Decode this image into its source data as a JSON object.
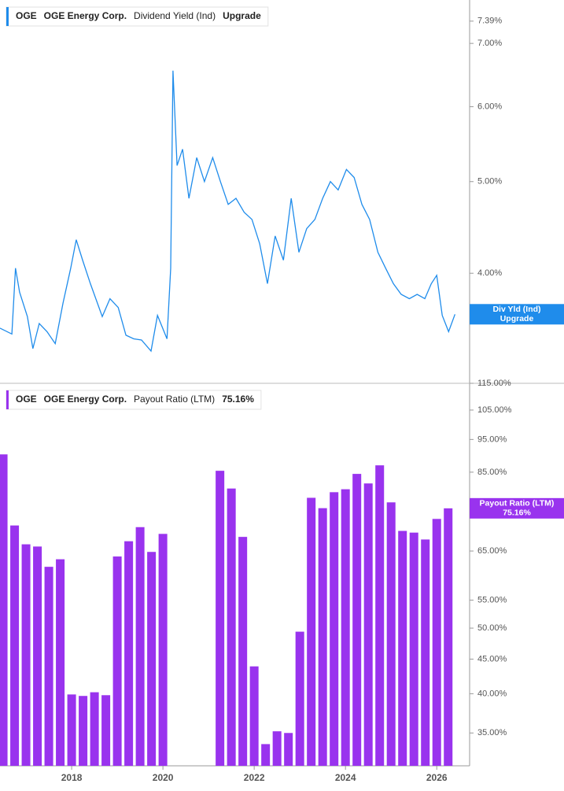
{
  "chart_data": [
    {
      "type": "line",
      "legend": {
        "ticker": "OGE",
        "company": "OGE Energy Corp.",
        "metric": "Dividend Yield (Ind)",
        "status": "Upgrade"
      },
      "badge_name": "Div Yld (Ind)",
      "x": [
        2016.43,
        2016.69,
        2016.77,
        2016.86,
        2017.03,
        2017.15,
        2017.29,
        2017.46,
        2017.64,
        2017.81,
        2017.98,
        2018.1,
        2018.24,
        2018.41,
        2018.67,
        2018.84,
        2019.02,
        2019.19,
        2019.36,
        2019.53,
        2019.74,
        2019.88,
        2020.09,
        2020.17,
        2020.22,
        2020.31,
        2020.43,
        2020.57,
        2020.74,
        2020.91,
        2021.09,
        2021.26,
        2021.43,
        2021.6,
        2021.78,
        2021.95,
        2022.12,
        2022.29,
        2022.46,
        2022.64,
        2022.81,
        2022.98,
        2023.15,
        2023.33,
        2023.5,
        2023.67,
        2023.84,
        2024.02,
        2024.19,
        2024.36,
        2024.53,
        2024.71,
        2024.88,
        2025.05,
        2025.22,
        2025.4,
        2025.57,
        2025.74,
        2025.88,
        2026.0,
        2026.12,
        2026.26,
        2026.4
      ],
      "values": [
        3.5,
        3.45,
        4.05,
        3.82,
        3.6,
        3.33,
        3.54,
        3.47,
        3.37,
        3.72,
        4.05,
        4.34,
        4.13,
        3.9,
        3.6,
        3.76,
        3.68,
        3.44,
        3.41,
        3.4,
        3.31,
        3.61,
        3.41,
        4.05,
        6.55,
        5.2,
        5.41,
        4.8,
        5.3,
        5.0,
        5.3,
        5.0,
        4.73,
        4.8,
        4.64,
        4.56,
        4.3,
        3.9,
        4.38,
        4.13,
        4.8,
        4.21,
        4.46,
        4.56,
        4.8,
        5.0,
        4.9,
        5.15,
        5.05,
        4.73,
        4.56,
        4.21,
        4.05,
        3.9,
        3.8,
        3.76,
        3.8,
        3.76,
        3.9,
        3.98,
        3.61,
        3.47,
        3.62
      ],
      "color": "#1f8ceb",
      "xlim": [
        2016.43,
        2026.72
      ],
      "ylim": [
        3.06,
        7.78
      ],
      "log_scale": true,
      "yticks": [
        {
          "value": 7.39,
          "label": "7.39%"
        },
        {
          "value": 7,
          "label": "7.00%"
        },
        {
          "value": 6,
          "label": "6.00%"
        },
        {
          "value": 5,
          "label": "5.00%"
        },
        {
          "value": 4,
          "label": "4.00%"
        }
      ]
    },
    {
      "type": "bar",
      "legend": {
        "ticker": "OGE",
        "company": "OGE Energy Corp.",
        "metric": "Payout Ratio (LTM)",
        "status": "75.16%"
      },
      "x": [
        2016.5,
        2016.75,
        2017.0,
        2017.25,
        2017.5,
        2017.75,
        2018.0,
        2018.25,
        2018.5,
        2018.75,
        2019.0,
        2019.25,
        2019.5,
        2019.75,
        2020.0,
        2021.25,
        2021.5,
        2021.75,
        2022.0,
        2022.25,
        2022.5,
        2022.75,
        2023.0,
        2023.25,
        2023.5,
        2023.75,
        2024.0,
        2024.25,
        2024.5,
        2024.75,
        2025.0,
        2025.25,
        2025.5,
        2025.75,
        2026.0,
        2026.25
      ],
      "values": [
        90.3,
        70.9,
        66.5,
        66.0,
        61.6,
        63.2,
        39.9,
        39.7,
        40.2,
        39.8,
        63.8,
        67.2,
        70.5,
        64.8,
        68.9,
        85.4,
        80.4,
        68.2,
        43.9,
        33.7,
        35.2,
        35.0,
        49.4,
        77.9,
        75.2,
        79.4,
        80.2,
        84.5,
        81.8,
        87.0,
        76.7,
        69.6,
        69.2,
        67.6,
        72.5,
        75.16
      ],
      "color": "#9933ee",
      "xlim": [
        2016.43,
        2026.72
      ],
      "xticks": [
        2018,
        2020,
        2022,
        2024,
        2026
      ],
      "ylim": [
        31.3,
        115
      ],
      "log_scale": true,
      "yticks": [
        {
          "value": 115,
          "label": "115.00%"
        },
        {
          "value": 105,
          "label": "105.00%"
        },
        {
          "value": 95,
          "label": "95.00%"
        },
        {
          "value": 85,
          "label": "85.00%"
        },
        {
          "value": 65,
          "label": "65.00%"
        },
        {
          "value": 55,
          "label": "55.00%"
        },
        {
          "value": 50,
          "label": "50.00%"
        },
        {
          "value": 45,
          "label": "45.00%"
        },
        {
          "value": 40,
          "label": "40.00%"
        },
        {
          "value": 35,
          "label": "35.00%"
        }
      ]
    }
  ]
}
